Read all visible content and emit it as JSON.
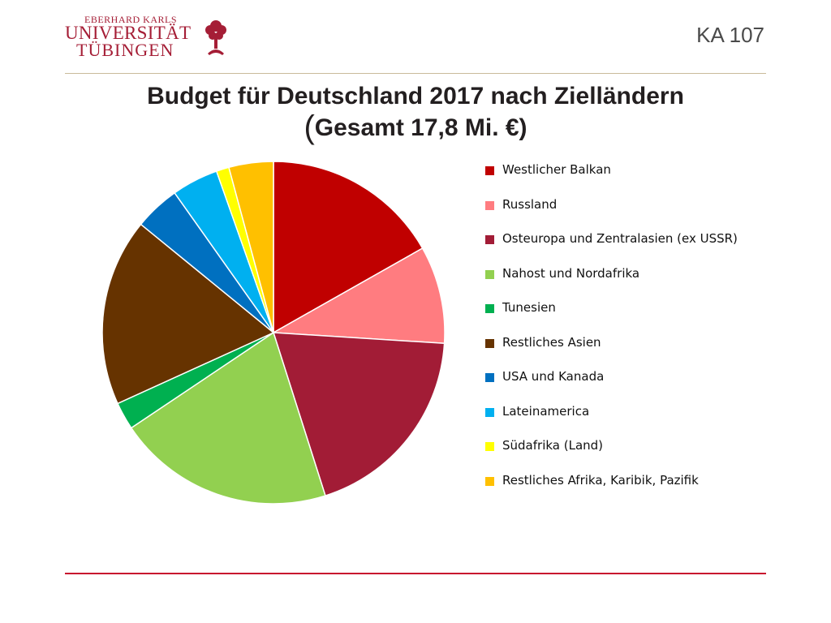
{
  "header": {
    "logo": {
      "line1": "EBERHARD KARLS",
      "line2": "UNIVERSITÄT",
      "line3": "TÜBINGEN"
    },
    "slide_code": "KA 107"
  },
  "chart_data": {
    "type": "pie",
    "title_line1": "Budget für Deutschland 2017 nach Zielländern",
    "title_line2_open": "(",
    "title_line2": "Gesamt 17,8 Mi. €)",
    "legend_position": "right",
    "start_angle_deg": 0,
    "direction": "clockwise",
    "slices": [
      {
        "label": "Westlicher Balkan",
        "value": 16.8,
        "color": "#c00000"
      },
      {
        "label": "Russland",
        "value": 9.2,
        "color": "#ff7c80"
      },
      {
        "label": "Osteuropa und Zentralasien (ex USSR)",
        "value": 19.1,
        "color": "#a21c36"
      },
      {
        "label": "Nahost und Nordafrika",
        "value": 20.5,
        "color": "#92d050"
      },
      {
        "label": "Tunesien",
        "value": 2.6,
        "color": "#00b050"
      },
      {
        "label": "Restliches Asien",
        "value": 17.7,
        "color": "#663300"
      },
      {
        "label": "USA und Kanada",
        "value": 4.3,
        "color": "#0070c0"
      },
      {
        "label": "Lateinamerica",
        "value": 4.4,
        "color": "#00b0f0"
      },
      {
        "label": "Südafrika (Land)",
        "value": 1.2,
        "color": "#ffff00"
      },
      {
        "label": "Restliches Afrika, Karibik, Pazifik",
        "value": 4.2,
        "color": "#ffc000"
      }
    ]
  }
}
